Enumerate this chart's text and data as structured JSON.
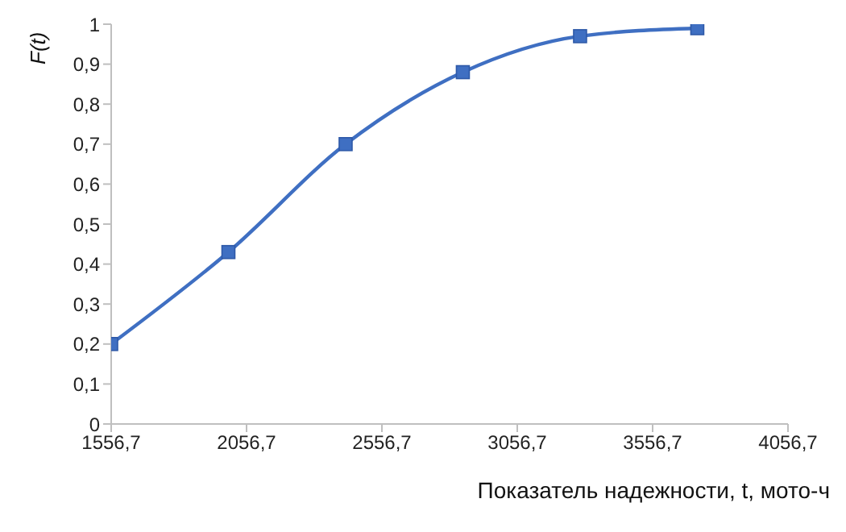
{
  "chart_data": {
    "type": "line",
    "xlabel": "Показатель надежности, t, мото-ч",
    "ylabel": "F(t)",
    "x": [
      1556.7,
      1989.7,
      2422.7,
      2855.7,
      3288.7,
      3721.7
    ],
    "series": [
      {
        "color": "#3f6fc2",
        "values": [
          0.2,
          0.43,
          0.7,
          0.88,
          0.97,
          0.99
        ]
      }
    ],
    "xlim": [
      1556.7,
      4056.7
    ],
    "xticks": [
      {
        "value": 1556.7,
        "label": "1556,7"
      },
      {
        "value": 2056.7,
        "label": "2056,7"
      },
      {
        "value": 2556.7,
        "label": "2556,7"
      },
      {
        "value": 3056.7,
        "label": "3056,7"
      },
      {
        "value": 3556.7,
        "label": "3556,7"
      },
      {
        "value": 4056.7,
        "label": "4056,7"
      }
    ],
    "ylim": [
      0,
      1
    ],
    "yticks": [
      0,
      {
        "value": 0.1,
        "label": "0,1"
      },
      {
        "value": 0.2,
        "label": "0,2"
      },
      {
        "value": 0.3,
        "label": "0,3"
      },
      {
        "value": 0.4,
        "label": "0,4"
      },
      {
        "value": 0.5,
        "label": "0,5"
      },
      {
        "value": 0.6,
        "label": "0,6"
      },
      {
        "value": 0.7,
        "label": "0,7"
      },
      {
        "value": 0.8,
        "label": "0,8"
      },
      {
        "value": 0.9,
        "label": "0,9"
      },
      1
    ],
    "grid": false,
    "legend": false,
    "marker": "square",
    "line_style": "solid"
  }
}
